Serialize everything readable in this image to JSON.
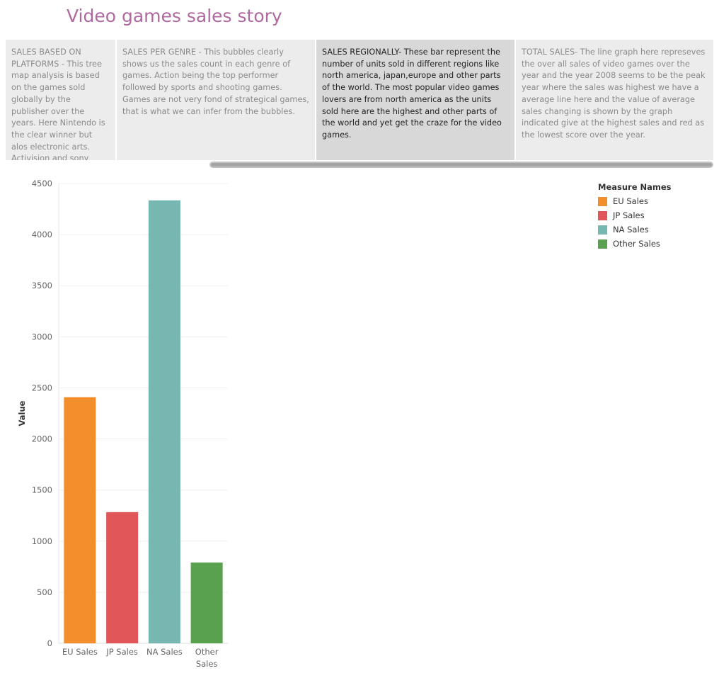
{
  "story": {
    "title": "Video games sales story",
    "points": [
      {
        "text": "SALES BASED ON PLATFORMS - This tree map analysis is based on the games sold globally by the publisher over the years. Here Nintendo is the clear winner but alos electronic arts. Activision and sony computer ente..",
        "active": false
      },
      {
        "text": "SALES PER GENRE - This bubbles clearly shows us the sales count in each genre of games. Action being the top performer followed by sports and shooting games. Games are not very fond of strategical games, that is what we can infer from the bubbles.",
        "active": false
      },
      {
        "text": "SALES REGIONALLY- These bar represent the number of units sold in different regions like north america, japan,europe and other parts of the world. The most popular video games lovers are from north america as the units sold here are the highest and other parts of the world and yet get the craze for the video games.",
        "active": true
      },
      {
        "text": "TOTAL SALES- The line graph here represeves the over all sales of video games over the year and the year 2008 seems to be the peak year where the sales was highest we have a average line here and the value of average sales changing is shown by the graph indicated give at the highest sales and red as the lowest score over the year.",
        "active": false
      }
    ]
  },
  "legend": {
    "title": "Measure Names",
    "items": [
      {
        "label": "EU Sales",
        "color": "#f28e2b"
      },
      {
        "label": "JP Sales",
        "color": "#e15759"
      },
      {
        "label": "NA Sales",
        "color": "#76b7b2"
      },
      {
        "label": "Other Sales",
        "color": "#59a14f"
      }
    ]
  },
  "chart_data": {
    "type": "bar",
    "categories": [
      "EU Sales",
      "JP Sales",
      "NA Sales",
      "Other Sales"
    ],
    "values": [
      2409,
      1284,
      4335,
      791
    ],
    "colors": [
      "#f28e2b",
      "#e15759",
      "#76b7b2",
      "#59a14f"
    ],
    "ylabel": "Value",
    "xlabel": "",
    "ylim": [
      0,
      4500
    ],
    "yticks": [
      0,
      500,
      1000,
      1500,
      2000,
      2500,
      3000,
      3500,
      4000,
      4500
    ],
    "grid": true,
    "legend_position": "top-right"
  }
}
